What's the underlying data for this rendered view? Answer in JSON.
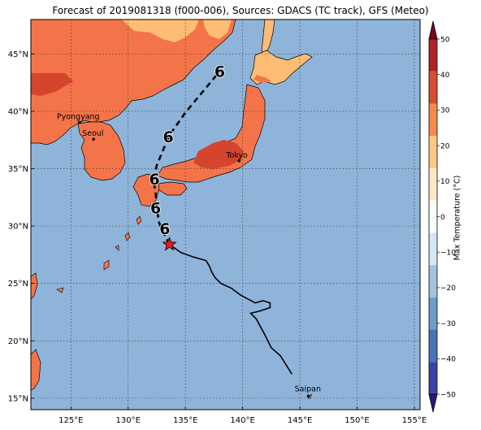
{
  "title": "Forecast of 2019081318 (f000-006), Sources: GDACS (TC track), GFS (Meteo)",
  "map": {
    "lon_range": [
      121.5,
      155.5
    ],
    "lat_range": [
      14,
      48
    ],
    "lon_ticks": [
      "125°E",
      "130°E",
      "135°E",
      "140°E",
      "145°E",
      "150°E",
      "155°E"
    ],
    "lat_ticks": [
      "15°N",
      "20°N",
      "25°N",
      "30°N",
      "35°N",
      "40°N",
      "45°N"
    ],
    "grid": true,
    "ocean_color": "#8fb4da",
    "cities": [
      {
        "name": "Pyongyang",
        "lon": 125.75,
        "lat": 39.03
      },
      {
        "name": "Seoul",
        "lon": 126.98,
        "lat": 37.57
      },
      {
        "name": "Tokyo",
        "lon": 139.69,
        "lat": 35.69
      },
      {
        "name": "Saipan",
        "lon": 145.75,
        "lat": 15.18
      }
    ],
    "storm": {
      "current_marker": "red-star",
      "current_position": {
        "lon": 133.6,
        "lat": 28.4
      },
      "past_track": [
        [
          144.3,
          17.1
        ],
        [
          143.3,
          18.7
        ],
        [
          142.5,
          19.4
        ],
        [
          141.9,
          20.6
        ],
        [
          141.2,
          21.9
        ],
        [
          140.7,
          22.4
        ],
        [
          141.5,
          22.6
        ],
        [
          142.4,
          22.9
        ],
        [
          142.4,
          23.3
        ],
        [
          141.8,
          23.5
        ],
        [
          141.1,
          23.3
        ],
        [
          139.8,
          24.0
        ],
        [
          139.0,
          24.6
        ],
        [
          138.1,
          25.0
        ],
        [
          137.6,
          25.5
        ],
        [
          137.3,
          26.0
        ],
        [
          137.1,
          26.5
        ],
        [
          136.8,
          27.0
        ],
        [
          135.7,
          27.3
        ],
        [
          134.6,
          27.7
        ],
        [
          133.6,
          28.4
        ]
      ],
      "forecast_track": [
        [
          133.6,
          28.4
        ],
        [
          133.2,
          29.2
        ],
        [
          132.7,
          30.3
        ],
        [
          132.5,
          31.5
        ],
        [
          132.4,
          32.8
        ],
        [
          132.2,
          34.1
        ],
        [
          132.5,
          35.3
        ],
        [
          133.0,
          36.5
        ],
        [
          133.6,
          37.9
        ],
        [
          135.0,
          39.9
        ],
        [
          136.6,
          41.8
        ],
        [
          138.0,
          43.5
        ]
      ],
      "forecast_symbols": [
        {
          "lon": 133.2,
          "lat": 29.8
        },
        {
          "lon": 132.4,
          "lat": 31.6
        },
        {
          "lon": 132.3,
          "lat": 34.1
        },
        {
          "lon": 133.5,
          "lat": 37.8
        },
        {
          "lon": 138.0,
          "lat": 43.5
        }
      ]
    }
  },
  "colorbar": {
    "label": "Max Temperature (°C)",
    "ticks": [
      "−50",
      "−40",
      "−30",
      "−20",
      "−10",
      "0",
      "10",
      "20",
      "30",
      "40",
      "50"
    ],
    "range": [
      -50,
      50
    ],
    "colors": [
      "#2b1877",
      "#3943a6",
      "#4a72b6",
      "#6e9dc9",
      "#a2c4de",
      "#d4e7f2",
      "#f7fcfd",
      "#fee8c7",
      "#fdc785",
      "#f48b4d",
      "#d84d31",
      "#b02325",
      "#7a0320"
    ]
  },
  "land_colors": {
    "warm": "#f4744a",
    "mild": "#fdbd74",
    "hot": "#d5452d"
  }
}
